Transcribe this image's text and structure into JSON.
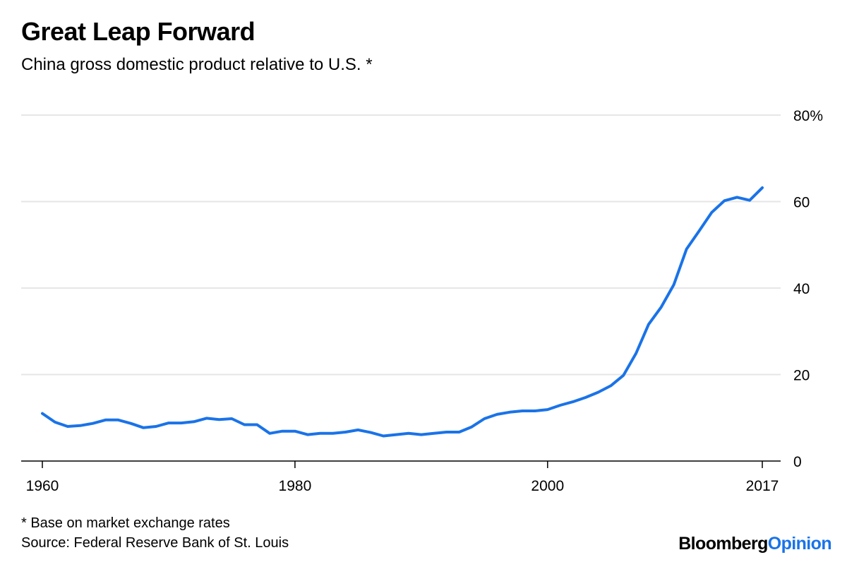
{
  "title": "Great Leap Forward",
  "subtitle": "China gross domestic product relative to U.S. *",
  "footnote": "* Base on market exchange rates",
  "source": "Source: Federal Reserve Bank of St. Louis",
  "brand": {
    "part1": "Bloomberg",
    "part2": "Opinion"
  },
  "colors": {
    "line": "#1a73e8",
    "grid": "#e6e6e6",
    "axis": "#000000",
    "brand_accent": "#1a73e8"
  },
  "chart_data": {
    "type": "line",
    "title": "Great Leap Forward",
    "subtitle": "China gross domestic product relative to U.S. *",
    "xlabel": "",
    "ylabel": "",
    "xlim": [
      1960,
      2017
    ],
    "ylim": [
      0,
      80
    ],
    "x_ticks": [
      1960,
      1980,
      2000,
      2017
    ],
    "x_tick_labels": [
      "1960",
      "1980",
      "2000",
      "2017"
    ],
    "y_ticks": [
      0,
      20,
      40,
      60,
      80
    ],
    "y_tick_labels": [
      "0",
      "20",
      "40",
      "60",
      "80%"
    ],
    "grid": true,
    "y_axis_side": "right",
    "series": [
      {
        "name": "China GDP relative to U.S.",
        "x": [
          1960,
          1961,
          1962,
          1963,
          1964,
          1965,
          1966,
          1967,
          1968,
          1969,
          1970,
          1971,
          1972,
          1973,
          1974,
          1975,
          1976,
          1977,
          1978,
          1979,
          1980,
          1981,
          1982,
          1983,
          1984,
          1985,
          1986,
          1987,
          1988,
          1989,
          1990,
          1991,
          1992,
          1993,
          1994,
          1995,
          1996,
          1997,
          1998,
          1999,
          2000,
          2001,
          2002,
          2003,
          2004,
          2005,
          2006,
          2007,
          2008,
          2009,
          2010,
          2011,
          2012,
          2013,
          2014,
          2015,
          2016,
          2017
        ],
        "values": [
          11.0,
          9.0,
          8.0,
          8.2,
          8.7,
          9.5,
          9.5,
          8.7,
          7.7,
          8.0,
          8.8,
          8.8,
          9.1,
          9.9,
          9.6,
          9.8,
          8.4,
          8.4,
          6.4,
          6.9,
          6.9,
          6.1,
          6.4,
          6.4,
          6.7,
          7.2,
          6.6,
          5.8,
          6.1,
          6.4,
          6.1,
          6.4,
          6.7,
          6.7,
          7.9,
          9.8,
          10.8,
          11.3,
          11.6,
          11.6,
          11.9,
          12.9,
          13.7,
          14.7,
          15.9,
          17.4,
          19.8,
          24.9,
          31.6,
          35.6,
          40.8,
          49.0,
          53.2,
          57.5,
          60.2,
          61.0,
          60.3,
          63.2
        ]
      }
    ]
  }
}
